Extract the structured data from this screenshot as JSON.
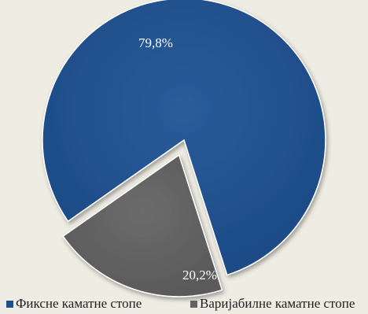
{
  "chart_data": {
    "type": "pie",
    "title": "",
    "slices": [
      {
        "label": "Фиксне каматне стопе",
        "value": 79.8,
        "display": "79,8%",
        "color": "#1f4f8c",
        "exploded": false
      },
      {
        "label": "Варијабилне каматне стопе",
        "value": 20.2,
        "display": "20,2%",
        "color": "#636363",
        "exploded": true
      }
    ],
    "legend_position": "bottom"
  }
}
